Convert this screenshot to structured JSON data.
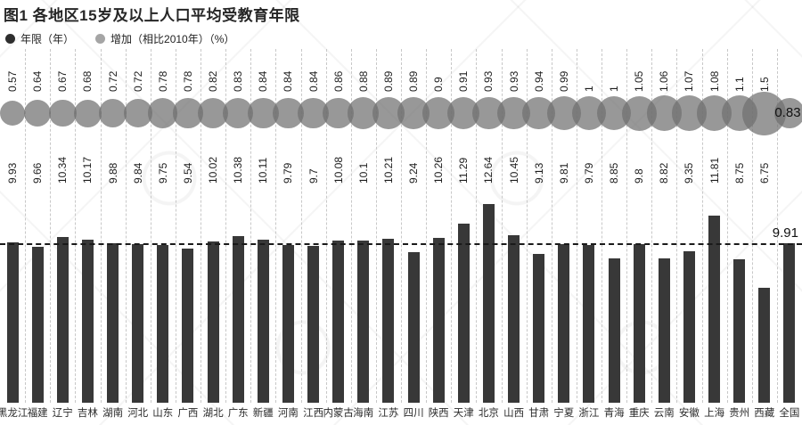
{
  "header": {
    "title": "图1  各地区15岁及以上人口平均受教育年限"
  },
  "legend": [
    {
      "label": "年限（年）",
      "color": "#2e2e2e"
    },
    {
      "label": "增加（相比2010年）（%）",
      "color": "#a5a5a5"
    }
  ],
  "chart_data": {
    "type": "bar",
    "categories": [
      "黑龙江",
      "福建",
      "辽宁",
      "吉林",
      "湖南",
      "河北",
      "山东",
      "广西",
      "湖北",
      "广东",
      "新疆",
      "河南",
      "江西",
      "内蒙古",
      "海南",
      "江苏",
      "四川",
      "陕西",
      "天津",
      "北京",
      "山西",
      "甘肃",
      "宁夏",
      "浙江",
      "青海",
      "重庆",
      "云南",
      "安徽",
      "上海",
      "贵州",
      "西藏",
      "全国"
    ],
    "series": [
      {
        "name": "年限（年）",
        "type": "bar",
        "values": [
          9.93,
          9.66,
          10.34,
          10.17,
          9.88,
          9.84,
          9.75,
          9.54,
          10.02,
          10.38,
          10.11,
          9.79,
          9.7,
          10.08,
          10.1,
          10.21,
          9.24,
          10.26,
          11.29,
          12.64,
          10.45,
          9.13,
          9.81,
          9.79,
          8.85,
          9.8,
          8.82,
          9.35,
          11.81,
          8.75,
          6.75,
          9.91
        ]
      },
      {
        "name": "增加（相比2010年）（%）",
        "type": "bubble",
        "values": [
          0.57,
          0.64,
          0.67,
          0.68,
          0.72,
          0.72,
          0.78,
          0.78,
          0.82,
          0.83,
          0.84,
          0.84,
          0.84,
          0.86,
          0.88,
          0.89,
          0.89,
          0.9,
          0.91,
          0.93,
          0.93,
          0.94,
          0.99,
          1,
          1,
          1.05,
          1.06,
          1.07,
          1.08,
          1.1,
          1.5,
          0.83
        ]
      }
    ],
    "reference_line": {
      "value": 9.91,
      "label": "9.91"
    },
    "national_increase_label": "0.83",
    "colors": {
      "bar": "#383838",
      "bubble": "#969696",
      "reference_line": "#1a1a1a"
    },
    "grid": "vertical-dashed",
    "legend_position": "top-left",
    "value_labels": "rotated-90",
    "xlabel": "",
    "ylabel": ""
  }
}
